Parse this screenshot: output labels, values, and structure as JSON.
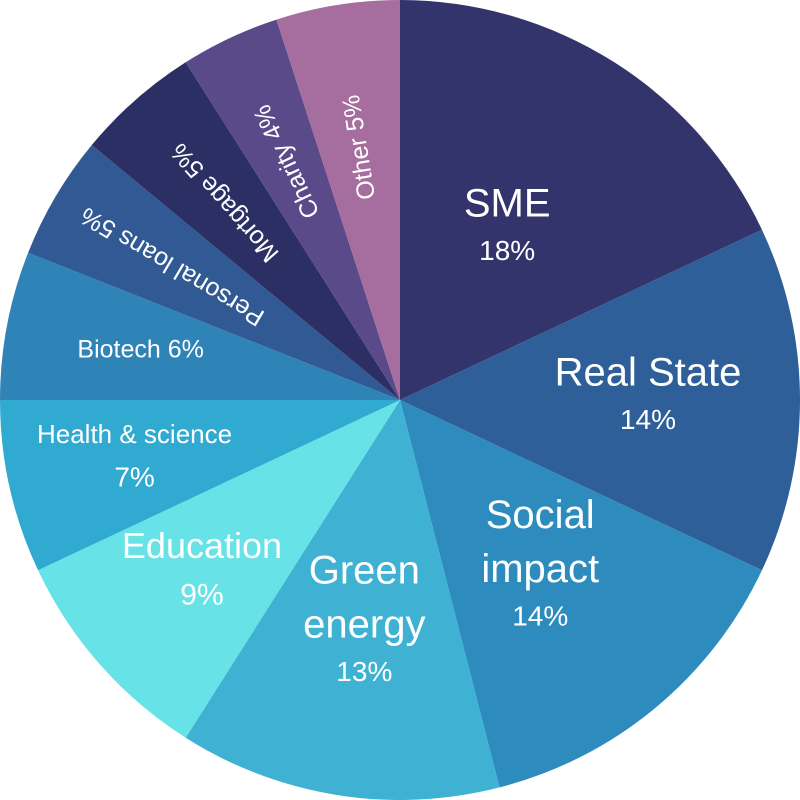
{
  "chart_data": {
    "type": "pie",
    "slices": [
      {
        "label": "SME",
        "value": 18,
        "display": "18%",
        "color": "#32346b"
      },
      {
        "label": "Real State",
        "value": 14,
        "display": "14%",
        "color": "#2f5f98"
      },
      {
        "label": "Social impact",
        "value": 14,
        "display": "14%",
        "color": "#2d8cbd"
      },
      {
        "label": "Green energy",
        "value": 13,
        "display": "13%",
        "color": "#3fb2d3"
      },
      {
        "label": "Education",
        "value": 9,
        "display": "9%",
        "color": "#67e2e7"
      },
      {
        "label": "Health & science",
        "value": 7,
        "display": "7%",
        "color": "#30aad1"
      },
      {
        "label": "Biotech",
        "value": 6,
        "display": "6%",
        "color": "#2e84b6"
      },
      {
        "label": "Personal loans",
        "value": 5,
        "display": "5%",
        "color": "#315a95"
      },
      {
        "label": "Mortgage",
        "value": 5,
        "display": "5%",
        "color": "#2c2f64"
      },
      {
        "label": "Charity",
        "value": 4,
        "display": "4%",
        "color": "#5a4a89"
      },
      {
        "label": "Other",
        "value": 5,
        "display": "5%",
        "color": "#a66d9f"
      }
    ]
  }
}
